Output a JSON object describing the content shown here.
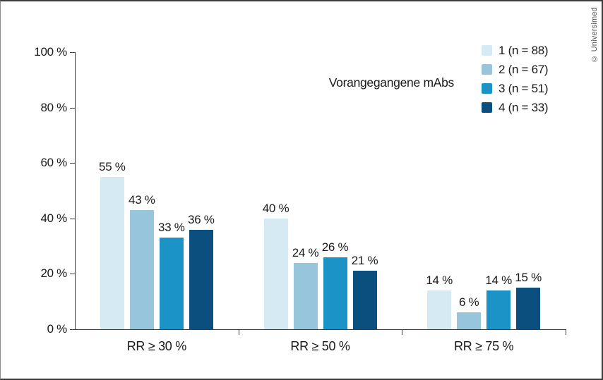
{
  "credit": "© Universimed",
  "legend": {
    "title": "Vorangegangene mAbs",
    "items": [
      {
        "label": "1 (n = 88)",
        "color": "#d6eaf4"
      },
      {
        "label": "2 (n = 67)",
        "color": "#97c6dc"
      },
      {
        "label": "3 (n = 51)",
        "color": "#1b93c6"
      },
      {
        "label": "4 (n = 33)",
        "color": "#0a4f7d"
      }
    ]
  },
  "chart_data": {
    "type": "bar",
    "title": "",
    "categories": [
      "RR ≥ 30 %",
      "RR ≥ 50 %",
      "RR ≥ 75 %"
    ],
    "series": [
      {
        "name": "1 (n = 88)",
        "color": "#d6eaf4",
        "values": [
          55,
          40,
          14
        ]
      },
      {
        "name": "2 (n = 67)",
        "color": "#97c6dc",
        "values": [
          43,
          24,
          6
        ]
      },
      {
        "name": "3 (n = 51)",
        "color": "#1b93c6",
        "values": [
          33,
          26,
          14
        ]
      },
      {
        "name": "4 (n = 33)",
        "color": "#0a4f7d",
        "values": [
          36,
          21,
          15
        ]
      }
    ],
    "value_suffix": " %",
    "ylim": [
      0,
      100
    ],
    "y_ticks": [
      0,
      20,
      40,
      60,
      80,
      100
    ],
    "y_tick_labels": [
      "0 %",
      "20 %",
      "40 %",
      "60 %",
      "80 %",
      "100 %"
    ],
    "grid": false,
    "legend_position": "top-right",
    "axis_color": "#3c3c3c",
    "text_color": "#1a1a1a"
  }
}
